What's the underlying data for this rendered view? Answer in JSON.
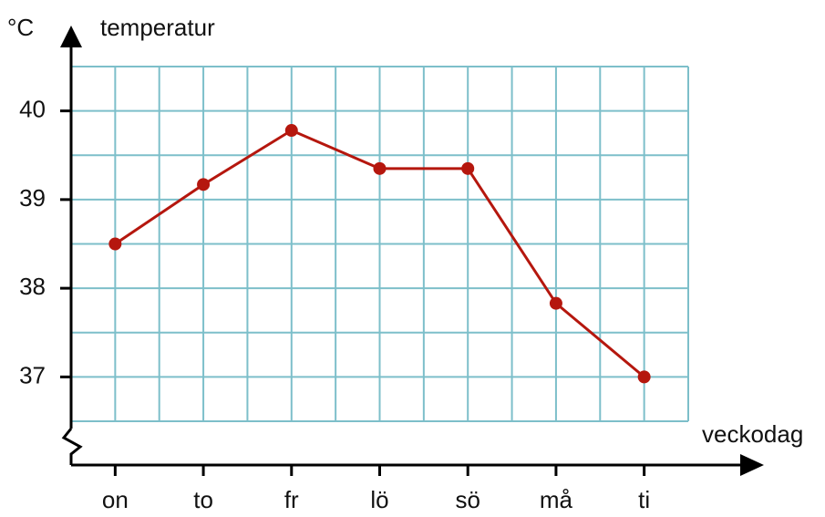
{
  "chart_data": {
    "type": "line",
    "y_unit": "°C",
    "y_label": "temperatur",
    "x_label": "veckodag",
    "categories": [
      "on",
      "to",
      "fr",
      "lö",
      "sö",
      "må",
      "ti"
    ],
    "series": [
      {
        "color": "#b5170e",
        "values": [
          38.5,
          39.17,
          39.78,
          39.35,
          39.35,
          37.83,
          37.0
        ]
      }
    ],
    "ylim": [
      36.5,
      40.5
    ],
    "yticks": [
      37,
      38,
      39,
      40
    ],
    "ygrid": [
      36.5,
      37,
      37.5,
      38,
      38.5,
      39,
      39.5,
      40,
      40.5
    ],
    "grid": true,
    "grid_color": "#7dbfca"
  }
}
